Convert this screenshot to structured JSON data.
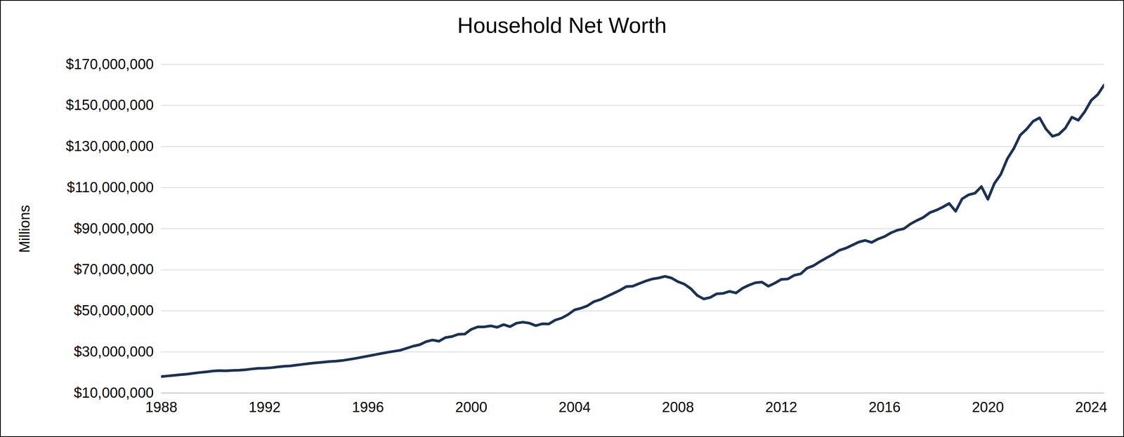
{
  "chart_data": {
    "type": "line",
    "title": "Household Net Worth",
    "ylabel": "Millions",
    "color": "#1b3157",
    "grid": true,
    "xlim": [
      1988,
      2024.5
    ],
    "xticks": [
      1988,
      1992,
      1996,
      2000,
      2004,
      2008,
      2012,
      2016,
      2020,
      2024
    ],
    "ylim": [
      10000000,
      170000000
    ],
    "yticks": [
      {
        "value": 10000000,
        "label": "$10,000,000"
      },
      {
        "value": 30000000,
        "label": "$30,000,000"
      },
      {
        "value": 50000000,
        "label": "$50,000,000"
      },
      {
        "value": 70000000,
        "label": "$70,000,000"
      },
      {
        "value": 90000000,
        "label": "$90,000,000"
      },
      {
        "value": 110000000,
        "label": "$110,000,000"
      },
      {
        "value": 130000000,
        "label": "$130,000,000"
      },
      {
        "value": 150000000,
        "label": "$150,000,000"
      },
      {
        "value": 170000000,
        "label": "$170,000,000"
      }
    ],
    "x": [
      1988,
      1988.25,
      1988.5,
      1988.75,
      1989,
      1989.25,
      1989.5,
      1989.75,
      1990,
      1990.25,
      1990.5,
      1990.75,
      1991,
      1991.25,
      1991.5,
      1991.75,
      1992,
      1992.25,
      1992.5,
      1992.75,
      1993,
      1993.25,
      1993.5,
      1993.75,
      1994,
      1994.25,
      1994.5,
      1994.75,
      1995,
      1995.25,
      1995.5,
      1995.75,
      1996,
      1996.25,
      1996.5,
      1996.75,
      1997,
      1997.25,
      1997.5,
      1997.75,
      1998,
      1998.25,
      1998.5,
      1998.75,
      1999,
      1999.25,
      1999.5,
      1999.75,
      2000,
      2000.25,
      2000.5,
      2000.75,
      2001,
      2001.25,
      2001.5,
      2001.75,
      2002,
      2002.25,
      2002.5,
      2002.75,
      2003,
      2003.25,
      2003.5,
      2003.75,
      2004,
      2004.25,
      2004.5,
      2004.75,
      2005,
      2005.25,
      2005.5,
      2005.75,
      2006,
      2006.25,
      2006.5,
      2006.75,
      2007,
      2007.25,
      2007.5,
      2007.75,
      2008,
      2008.25,
      2008.5,
      2008.75,
      2009,
      2009.25,
      2009.5,
      2009.75,
      2010,
      2010.25,
      2010.5,
      2010.75,
      2011,
      2011.25,
      2011.5,
      2011.75,
      2012,
      2012.25,
      2012.5,
      2012.75,
      2013,
      2013.25,
      2013.5,
      2013.75,
      2014,
      2014.25,
      2014.5,
      2014.75,
      2015,
      2015.25,
      2015.5,
      2015.75,
      2016,
      2016.25,
      2016.5,
      2016.75,
      2017,
      2017.25,
      2017.5,
      2017.75,
      2018,
      2018.25,
      2018.5,
      2018.75,
      2019,
      2019.25,
      2019.5,
      2019.75,
      2020,
      2020.25,
      2020.5,
      2020.75,
      2021,
      2021.25,
      2021.5,
      2021.75,
      2022,
      2022.25,
      2022.5,
      2022.75,
      2023,
      2023.25,
      2023.5,
      2023.75,
      2024,
      2024.25,
      2024.5
    ],
    "values": [
      18000000,
      18300000,
      18600000,
      18900000,
      19200000,
      19600000,
      20000000,
      20300000,
      20700000,
      20900000,
      20800000,
      21000000,
      21100000,
      21300000,
      21700000,
      22000000,
      22100000,
      22300000,
      22700000,
      23000000,
      23200000,
      23600000,
      24000000,
      24400000,
      24700000,
      25000000,
      25300000,
      25500000,
      25800000,
      26300000,
      26800000,
      27400000,
      28000000,
      28600000,
      29200000,
      29800000,
      30300000,
      30800000,
      31800000,
      32800000,
      33500000,
      35000000,
      35800000,
      35200000,
      37000000,
      37500000,
      38600000,
      38700000,
      41000000,
      42200000,
      42200000,
      42700000,
      42000000,
      43300000,
      42300000,
      44000000,
      44500000,
      44000000,
      42800000,
      43700000,
      43600000,
      45500000,
      46500000,
      48200000,
      50500000,
      51300000,
      52500000,
      54500000,
      55500000,
      57000000,
      58500000,
      60000000,
      61800000,
      62000000,
      63300000,
      64500000,
      65500000,
      66000000,
      66800000,
      66000000,
      64200000,
      63000000,
      60800000,
      57500000,
      55800000,
      56500000,
      58300000,
      58500000,
      59500000,
      58700000,
      61000000,
      62500000,
      63700000,
      64000000,
      62000000,
      63500000,
      65300000,
      65500000,
      67300000,
      68000000,
      70800000,
      72000000,
      74000000,
      75800000,
      77500000,
      79500000,
      80500000,
      82000000,
      83500000,
      84300000,
      83300000,
      85000000,
      86200000,
      88000000,
      89300000,
      90000000,
      92300000,
      94000000,
      95500000,
      97800000,
      99000000,
      100500000,
      102300000,
      98500000,
      104500000,
      106500000,
      107300000,
      110500000,
      104300000,
      112000000,
      116500000,
      124000000,
      129000000,
      135500000,
      138500000,
      142300000,
      144000000,
      138500000,
      135000000,
      136000000,
      139000000,
      144300000,
      142800000,
      147000000,
      152500000,
      155300000,
      160000000
    ]
  }
}
